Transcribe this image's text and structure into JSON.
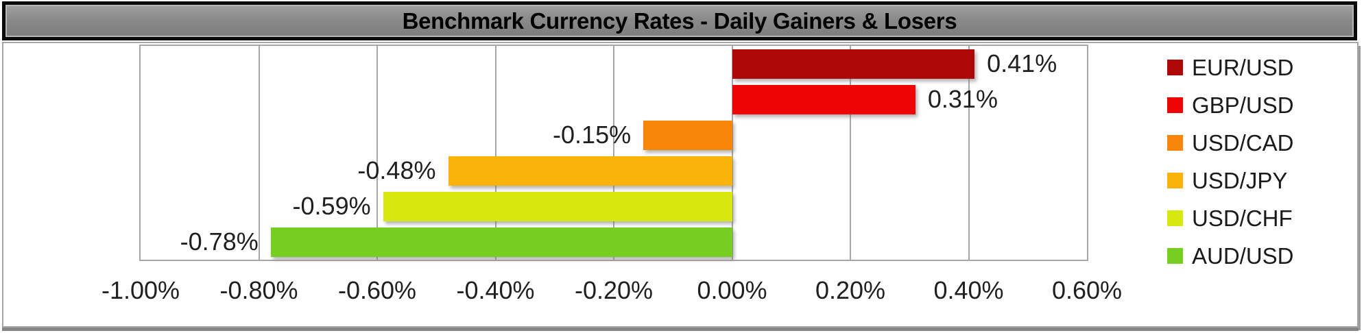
{
  "title": "Benchmark Currency Rates - Daily Gainers & Losers",
  "chart_data": {
    "type": "bar",
    "orientation": "horizontal",
    "title": "Benchmark Currency Rates - Daily Gainers & Losers",
    "categories": [
      "EUR/USD",
      "GBP/USD",
      "USD/CAD",
      "USD/JPY",
      "USD/CHF",
      "AUD/USD"
    ],
    "values": [
      0.41,
      0.31,
      -0.15,
      -0.48,
      -0.59,
      -0.78
    ],
    "value_labels": [
      "0.41%",
      "0.31%",
      "-0.15%",
      "-0.48%",
      "-0.59%",
      "-0.78%"
    ],
    "series_colors": [
      "#ae0707",
      "#ee0404",
      "#f8860a",
      "#f9b30b",
      "#d7e710",
      "#76ce20"
    ],
    "x_tick_labels": [
      "-1.00%",
      "-0.80%",
      "-0.60%",
      "-0.40%",
      "-0.20%",
      "0.00%",
      "0.20%",
      "0.40%",
      "0.60%"
    ],
    "xlim": [
      -1.0,
      0.6
    ],
    "grid": true,
    "legend_position": "right",
    "legend": [
      "EUR/USD",
      "GBP/USD",
      "USD/CAD",
      "USD/JPY",
      "USD/CHF",
      "AUD/USD"
    ]
  },
  "colors": {
    "banner_fill": "#8c8c8c",
    "banner_border": "#0a0a0a",
    "grid_line": "#a6a6a6",
    "label_text": "#1f1f1f",
    "title_text": "#000000"
  }
}
